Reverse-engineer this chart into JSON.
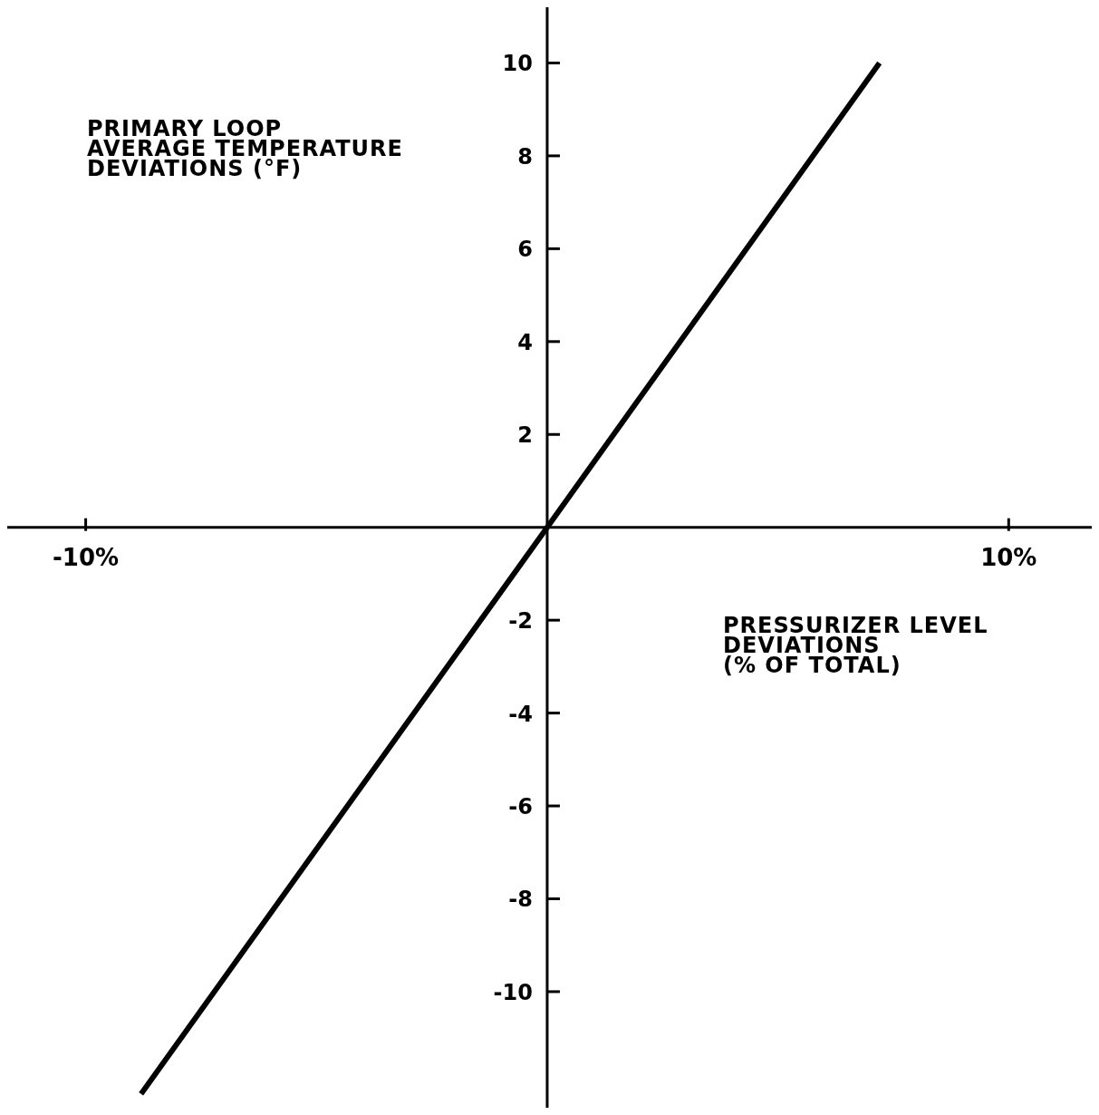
{
  "chart_data": {
    "type": "line",
    "xlabel": "PRESSURIZER LEVEL\nDEVIATIONS\n(% OF TOTAL)",
    "ylabel": "PRIMARY LOOP\nAVERAGE TEMPERATURE\nDEVIATIONS (°F)",
    "x": [
      -8.8,
      0,
      7.2
    ],
    "series": [
      {
        "color": "#000000",
        "values": [
          -12.2,
          0,
          10
        ]
      }
    ],
    "xlim": [
      -11.7,
      11.8
    ],
    "ylim": [
      -12.5,
      11.2
    ],
    "xticks": [
      {
        "value": -10,
        "label": "-10%"
      },
      {
        "value": 10,
        "label": "10%"
      }
    ],
    "yticks": [
      -10,
      -8,
      -6,
      -4,
      -2,
      2,
      4,
      6,
      8,
      10
    ],
    "marker": "none",
    "line_style": "solid"
  }
}
